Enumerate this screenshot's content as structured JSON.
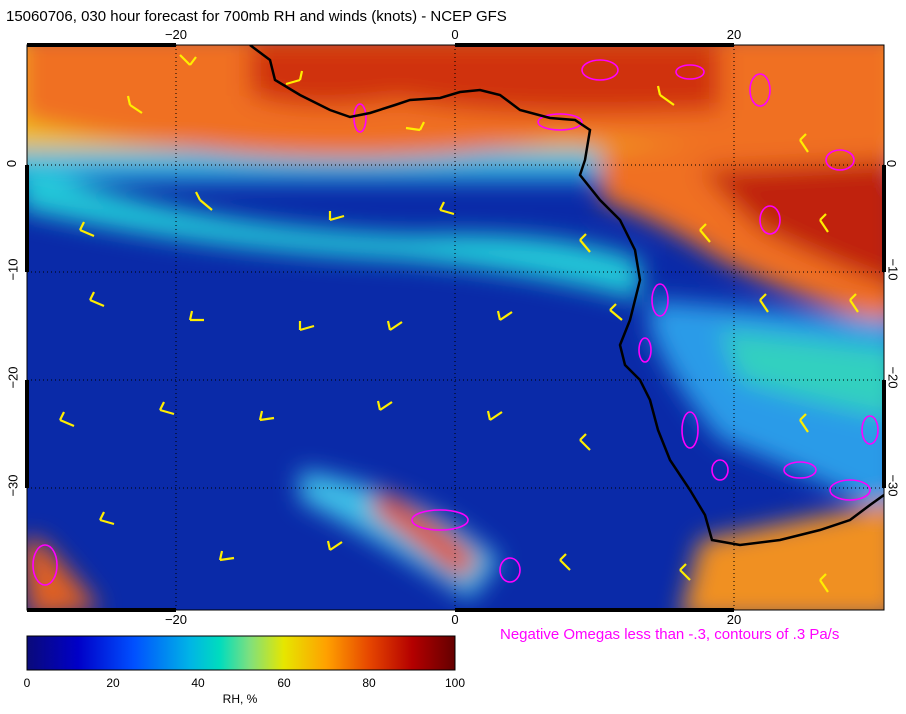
{
  "title": "15060706, 030 hour forecast for 700mb RH and winds (knots) - NCEP GFS",
  "map": {
    "lon_ticks": [
      "−20",
      "0",
      "20"
    ],
    "lat_ticks": [
      "0",
      "−10",
      "−20",
      "−30"
    ],
    "coastline_color": "#000000",
    "barb_color": "#ffee00",
    "omega_color": "#ff00ff",
    "gridlines": "dotted"
  },
  "omega_note": "Negative Omegas less than -.3, contours of .3 Pa/s",
  "colorbar": {
    "ticks": [
      "0",
      "20",
      "40",
      "60",
      "80",
      "100"
    ],
    "label": "RH, %",
    "colors": [
      "#0a0a7a",
      "#0000c8",
      "#0050ff",
      "#00b4e6",
      "#00dcbe",
      "#7ee07e",
      "#e6e600",
      "#ffa000",
      "#e64600",
      "#b40000",
      "#640000"
    ]
  }
}
